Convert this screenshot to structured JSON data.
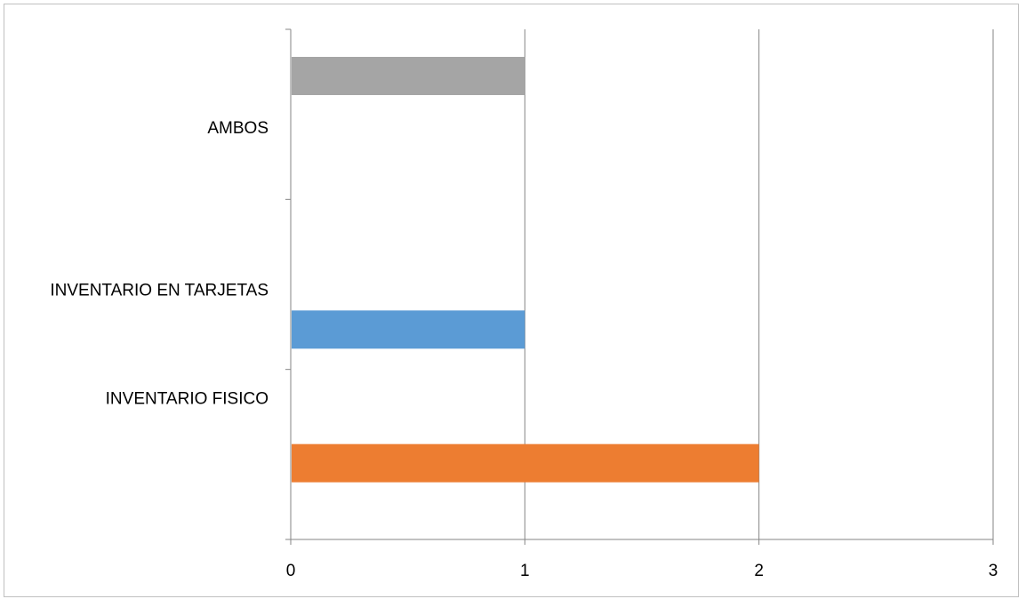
{
  "chart_data": {
    "type": "bar",
    "orientation": "horizontal",
    "categories": [
      "INVENTARIO FISICO",
      "INVENTARIO EN TARJETAS",
      "AMBOS"
    ],
    "values": [
      2,
      1,
      1
    ],
    "bar_colors": [
      "#ED7D31",
      "#5B9BD5",
      "#A5A5A5"
    ],
    "xlim": [
      0,
      3
    ],
    "x_ticks": [
      "0",
      "1",
      "2",
      "3"
    ],
    "grid": "vertical",
    "legend": "none",
    "title": "",
    "xlabel": "",
    "ylabel": ""
  }
}
